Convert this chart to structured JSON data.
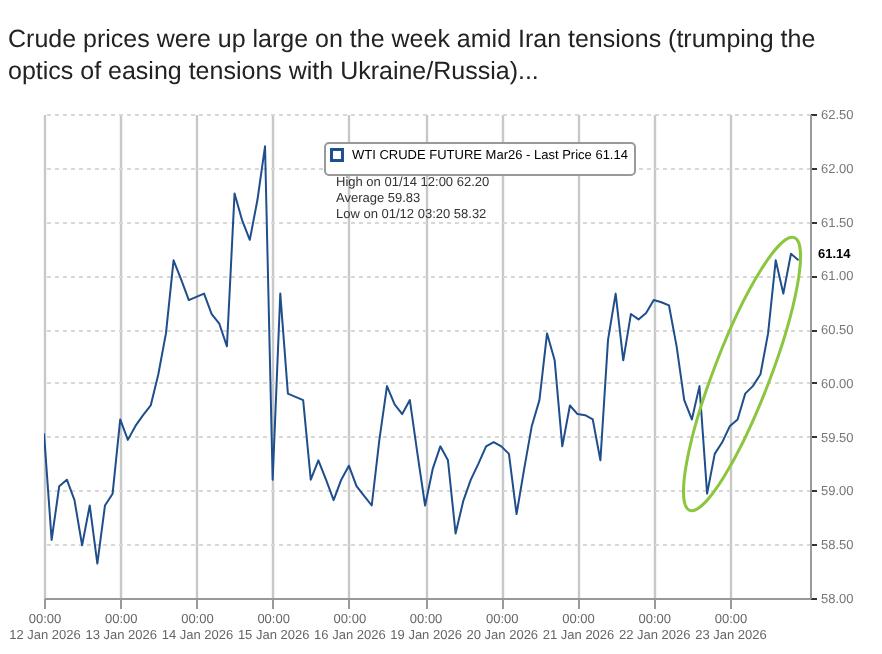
{
  "chart_data": {
    "type": "line",
    "title": "Crude prices were up large on the week amid Iran tensions (trumping the optics of easing tensions with Ukraine/Russia)...",
    "categories": [
      "00:00\n12 Jan 2026",
      null,
      null,
      null,
      null,
      null,
      null,
      null,
      null,
      null,
      "00:00\n13 Jan 2026",
      null,
      null,
      null,
      null,
      null,
      null,
      null,
      null,
      null,
      "00:00\n14 Jan 2026",
      null,
      null,
      null,
      null,
      null,
      null,
      null,
      null,
      null,
      "00:00\n15 Jan 2026",
      null,
      null,
      null,
      null,
      null,
      null,
      null,
      null,
      null,
      "00:00\n16 Jan 2026",
      null,
      null,
      null,
      null,
      null,
      null,
      null,
      null,
      null,
      "00:00\n19 Jan 2026",
      null,
      null,
      null,
      null,
      null,
      null,
      null,
      null,
      null,
      "00:00\n20 Jan 2026",
      null,
      null,
      null,
      null,
      null,
      null,
      null,
      null,
      null,
      "00:00\n21 Jan 2026",
      null,
      null,
      null,
      null,
      null,
      null,
      null,
      null,
      null,
      "00:00\n22 Jan 2026",
      null,
      null,
      null,
      null,
      null,
      null,
      null,
      null,
      null,
      "00:00\n23 Jan 2026",
      null,
      null,
      null,
      null,
      null,
      null,
      null,
      null,
      null
    ],
    "ylim": [
      58,
      62.5
    ],
    "yticks": [
      {
        "value": 58,
        "label": "58.00"
      },
      {
        "value": 58.5,
        "label": "58.50"
      },
      {
        "value": 59,
        "label": "59.00"
      },
      {
        "value": 59.5,
        "label": "59.50"
      },
      {
        "value": 60,
        "label": "60.00"
      },
      {
        "value": 60.5,
        "label": "60.50"
      },
      {
        "value": 61,
        "label": "61.00"
      },
      {
        "value": 61.5,
        "label": "61.50"
      },
      {
        "value": 62,
        "label": "62.00"
      },
      {
        "value": 62.5,
        "label": "62.50"
      }
    ],
    "grid": true,
    "legend": "top",
    "marker": "none",
    "line_style": "solid",
    "annotations": [
      "High on 01/14 12:00  62.20",
      "Average  59.83",
      "Low on 01/12 03:20  58.32",
      "61.14"
    ],
    "series": [
      {
        "name": "WTI CRUDE FUTURE Mar26 - Last Price 61.14",
        "color": "#1f4e8c",
        "values": [
          59.53,
          58.54,
          59.04,
          59.1,
          58.91,
          58.49,
          58.86,
          58.32,
          58.86,
          58.97,
          59.66,
          59.47,
          59.6,
          59.7,
          59.79,
          60.08,
          60.46,
          61.14,
          60.96,
          60.77,
          60.8,
          60.83,
          60.64,
          60.55,
          60.34,
          61.76,
          61.51,
          61.33,
          61.7,
          62.2,
          59.1,
          60.83,
          59.9,
          59.87,
          59.84,
          59.1,
          59.28,
          59.1,
          58.91,
          59.1,
          59.23,
          59.04,
          58.95,
          58.86,
          59.47,
          59.97,
          59.8,
          59.71,
          59.84,
          59.34,
          58.86,
          59.2,
          59.41,
          59.28,
          58.6,
          58.9,
          59.1,
          59.25,
          59.41,
          59.45,
          59.41,
          59.34,
          58.78,
          59.2,
          59.6,
          59.84,
          60.46,
          60.21,
          59.41,
          59.79,
          59.71,
          59.7,
          59.66,
          59.28,
          60.4,
          60.83,
          60.21,
          60.64,
          60.59,
          60.65,
          60.77,
          60.75,
          60.72,
          60.34,
          59.84,
          59.66,
          59.97,
          58.97,
          59.34,
          59.45,
          59.6,
          59.66,
          59.9,
          59.97,
          60.08,
          60.46,
          61.14,
          60.83,
          61.2,
          61.14
        ]
      }
    ]
  }
}
